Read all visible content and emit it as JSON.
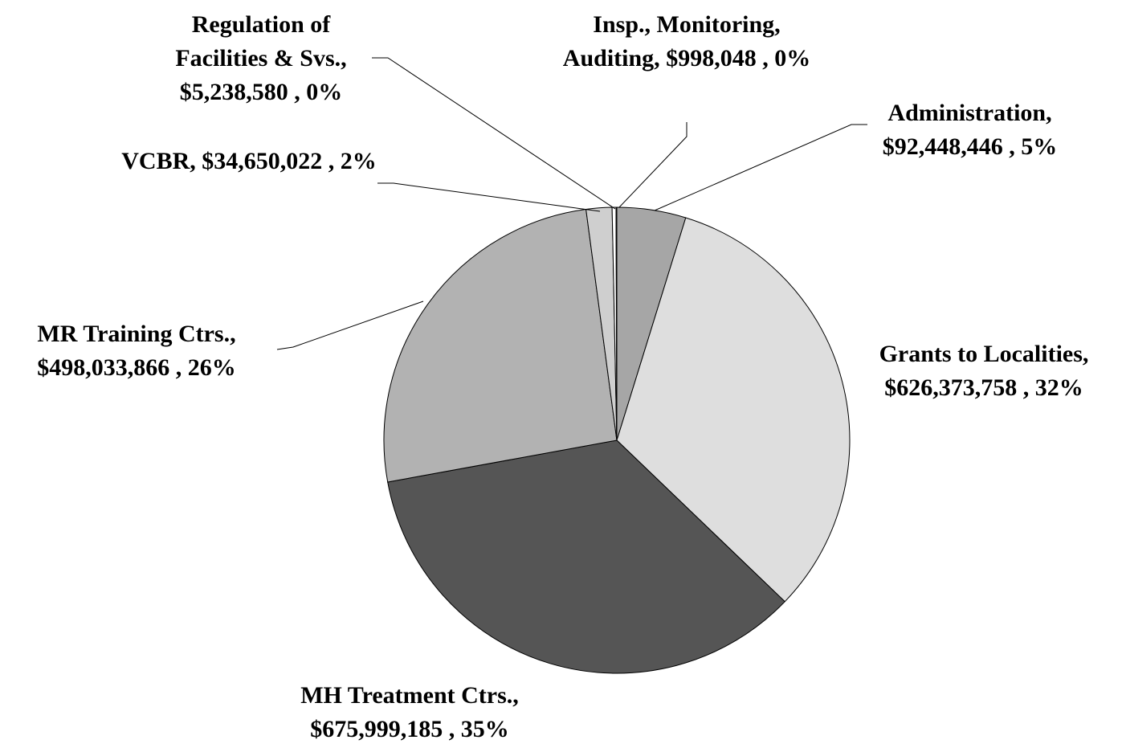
{
  "chart_data": {
    "type": "pie",
    "categories": [
      "Administration,",
      "Grants to Localities,",
      "MH Treatment Ctrs.,",
      "MR Training Ctrs.,",
      "VCBR,",
      "Regulation of Facilities & Svs.,",
      "Insp., Monitoring, Auditing,"
    ],
    "values": [
      92448446,
      626373758,
      675999185,
      498033866,
      34650022,
      5238580,
      998048
    ],
    "value_labels": [
      "$92,448,446 , 5%",
      "$626,373,758 , 32%",
      "$675,999,185 , 35%",
      "$498,033,866 , 26%",
      "$34,650,022 , 2%",
      "$5,238,580 , 0%",
      "$998,048 , 0%"
    ],
    "colors": [
      "#a6a6a6",
      "#dedede",
      "#555555",
      "#b2b2b2",
      "#cfcfcf",
      "#ffffff",
      "#ffffff"
    ]
  }
}
